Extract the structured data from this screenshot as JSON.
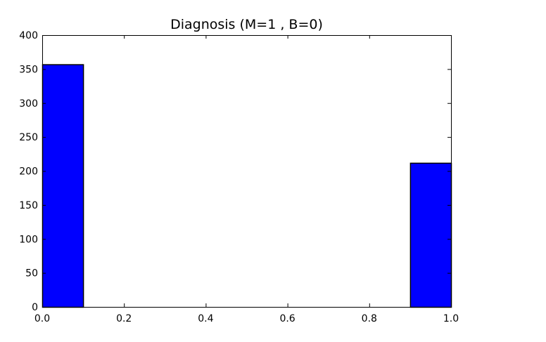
{
  "chart_data": {
    "type": "bar",
    "title": "Diagnosis (M=1 , B=0)",
    "xlabel": "",
    "ylabel": "",
    "xlim": [
      0.0,
      1.0
    ],
    "ylim": [
      0,
      400
    ],
    "bins": [
      {
        "x_start": 0.0,
        "x_end": 0.1,
        "value": 357
      },
      {
        "x_start": 0.9,
        "x_end": 1.0,
        "value": 212
      }
    ],
    "x_ticks": [
      "0.0",
      "0.2",
      "0.4",
      "0.6",
      "0.8",
      "1.0"
    ],
    "y_ticks": [
      "0",
      "50",
      "100",
      "150",
      "200",
      "250",
      "300",
      "350",
      "400"
    ],
    "bar_color": "#0000ff",
    "grid": false
  }
}
